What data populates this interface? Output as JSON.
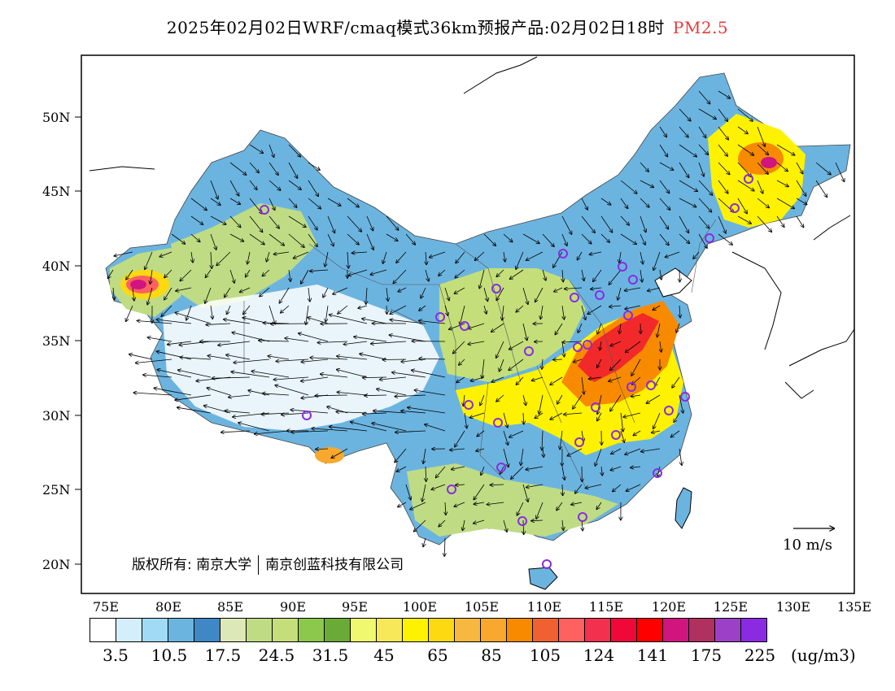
{
  "title": {
    "main": "2025年02月02日WRF/cmaq模式36km预报产品:02月02日18时",
    "variable": "PM2.5",
    "variable_color": "#e83a3a"
  },
  "axes": {
    "lat_labels": [
      "20N",
      "25N",
      "30N",
      "35N",
      "40N",
      "45N",
      "50N"
    ],
    "lon_labels": [
      "75E",
      "80E",
      "85E",
      "90E",
      "95E",
      "100E",
      "105E",
      "110E",
      "115E",
      "120E",
      "125E",
      "130E",
      "135E"
    ]
  },
  "colorbar": {
    "colors": [
      "#ffffff",
      "#d4eefb",
      "#a0daf5",
      "#6cb4e0",
      "#3f88c5",
      "#dde8b8",
      "#bfdc84",
      "#c4df7a",
      "#8cc84c",
      "#6aaa36",
      "#f0f870",
      "#f7e85a",
      "#fff200",
      "#fcd910",
      "#f8b840",
      "#f8a82c",
      "#f88a00",
      "#f06030",
      "#ff6060",
      "#f4304f",
      "#f0083a",
      "#ff0000",
      "#d0157f",
      "#b03060",
      "#9c40c8",
      "#8a2be2"
    ],
    "labels": [
      "3.5",
      "10.5",
      "17.5",
      "24.5",
      "31.5",
      "45",
      "65",
      "85",
      "105",
      "124",
      "141",
      "175",
      "225"
    ],
    "unit": "(ug/m3)"
  },
  "copyright": {
    "prefix": "版权所有: 南京大学",
    "suffix": "南京创蓝科技有限公司"
  },
  "wind_key": {
    "label": "10 m/s"
  },
  "palette": {
    "clean": "#ffffff",
    "light_blue": "#a0daf5",
    "blue": "#6cb4e0",
    "green": "#bfdc84",
    "yellow": "#fff200",
    "orange": "#f88a00",
    "red": "#f0083a",
    "magenta": "#d0157f",
    "city_marker": "#8a2be2"
  }
}
